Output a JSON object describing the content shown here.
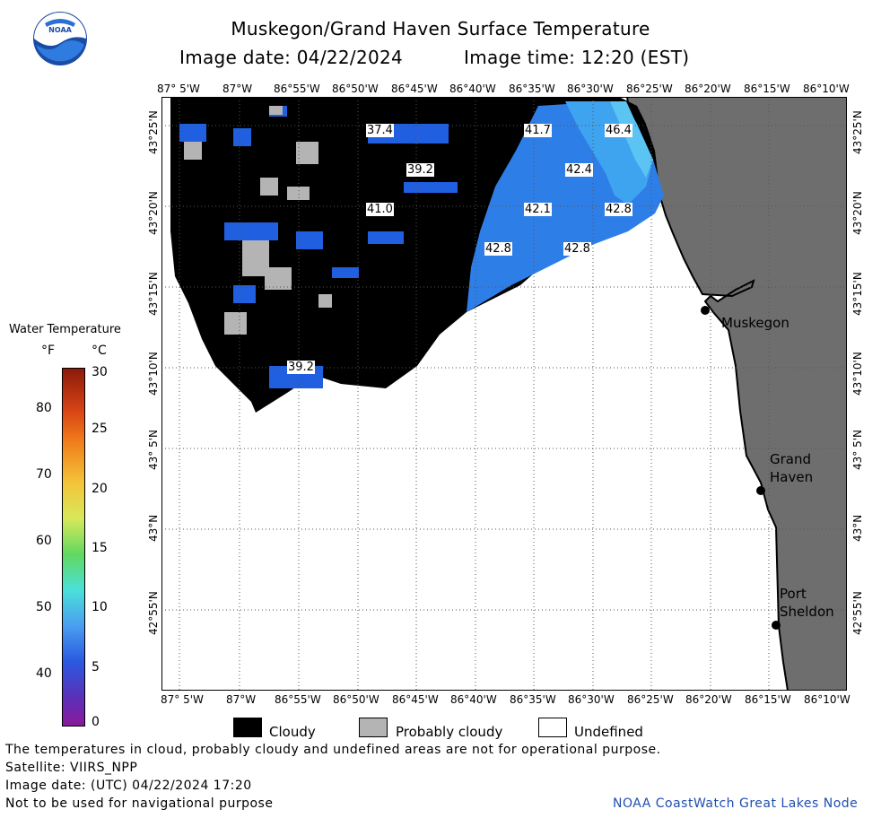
{
  "title_line1": "Muskegon/Grand Haven Surface Temperature",
  "title_date": "Image date: 04/22/2024",
  "title_time": "Image time: 12:20 (EST)",
  "logo_text": "NOAA",
  "lon_ticks": [
    "87° 5'W",
    "87°W",
    "86°55'W",
    "86°50'W",
    "86°45'W",
    "86°40'W",
    "86°35'W",
    "86°30'W",
    "86°25'W",
    "86°20'W",
    "86°15'W",
    "86°10'W"
  ],
  "lat_ticks": [
    "43°25'N",
    "43°20'N",
    "43°15'N",
    "43°10'N",
    "43° 5'N",
    "43°N",
    "42°55'N"
  ],
  "places": {
    "muskegon": "Muskegon",
    "grand_haven_1": "Grand",
    "grand_haven_2": "Haven",
    "port_sheldon_1": "Port",
    "port_sheldon_2": "Sheldon"
  },
  "temp_labels": [
    {
      "text": "37.4"
    },
    {
      "text": "41.7"
    },
    {
      "text": "46.4"
    },
    {
      "text": "39.2"
    },
    {
      "text": "42.4"
    },
    {
      "text": "41.0"
    },
    {
      "text": "42.1"
    },
    {
      "text": "42.8"
    },
    {
      "text": "42.8"
    },
    {
      "text": "42.8"
    },
    {
      "text": "39.2"
    }
  ],
  "colorbar": {
    "title": "Water Temperature",
    "unit_f": "°F",
    "unit_c": "°C",
    "f_ticks": [
      "80",
      "70",
      "60",
      "50",
      "40"
    ],
    "c_ticks": [
      "30",
      "25",
      "20",
      "15",
      "10",
      "5",
      "0"
    ],
    "f_range": [
      32,
      86
    ],
    "c_range": [
      0,
      30
    ]
  },
  "legend": {
    "cloudy": "Cloudy",
    "probably_cloudy": "Probably cloudy",
    "undefined": "Undefined"
  },
  "footer": {
    "line1": "The temperatures in cloud, probably cloudy and undefined areas are not for operational purpose.",
    "line2": "Satellite: VIIRS_NPP",
    "line3": "Image date: (UTC) 04/22/2024  17:20",
    "line4": "Not to be used for navigational purpose",
    "credit": "NOAA CoastWatch Great Lakes Node"
  },
  "colors": {
    "cloudy": "#000000",
    "probably_cloudy": "#b4b4b4",
    "land": "#6e6e6e",
    "water_cold": "#1f5fe0",
    "water_mid": "#2e8ef0",
    "water_warm": "#4ab8f0",
    "credit": "#1f4fb0"
  }
}
